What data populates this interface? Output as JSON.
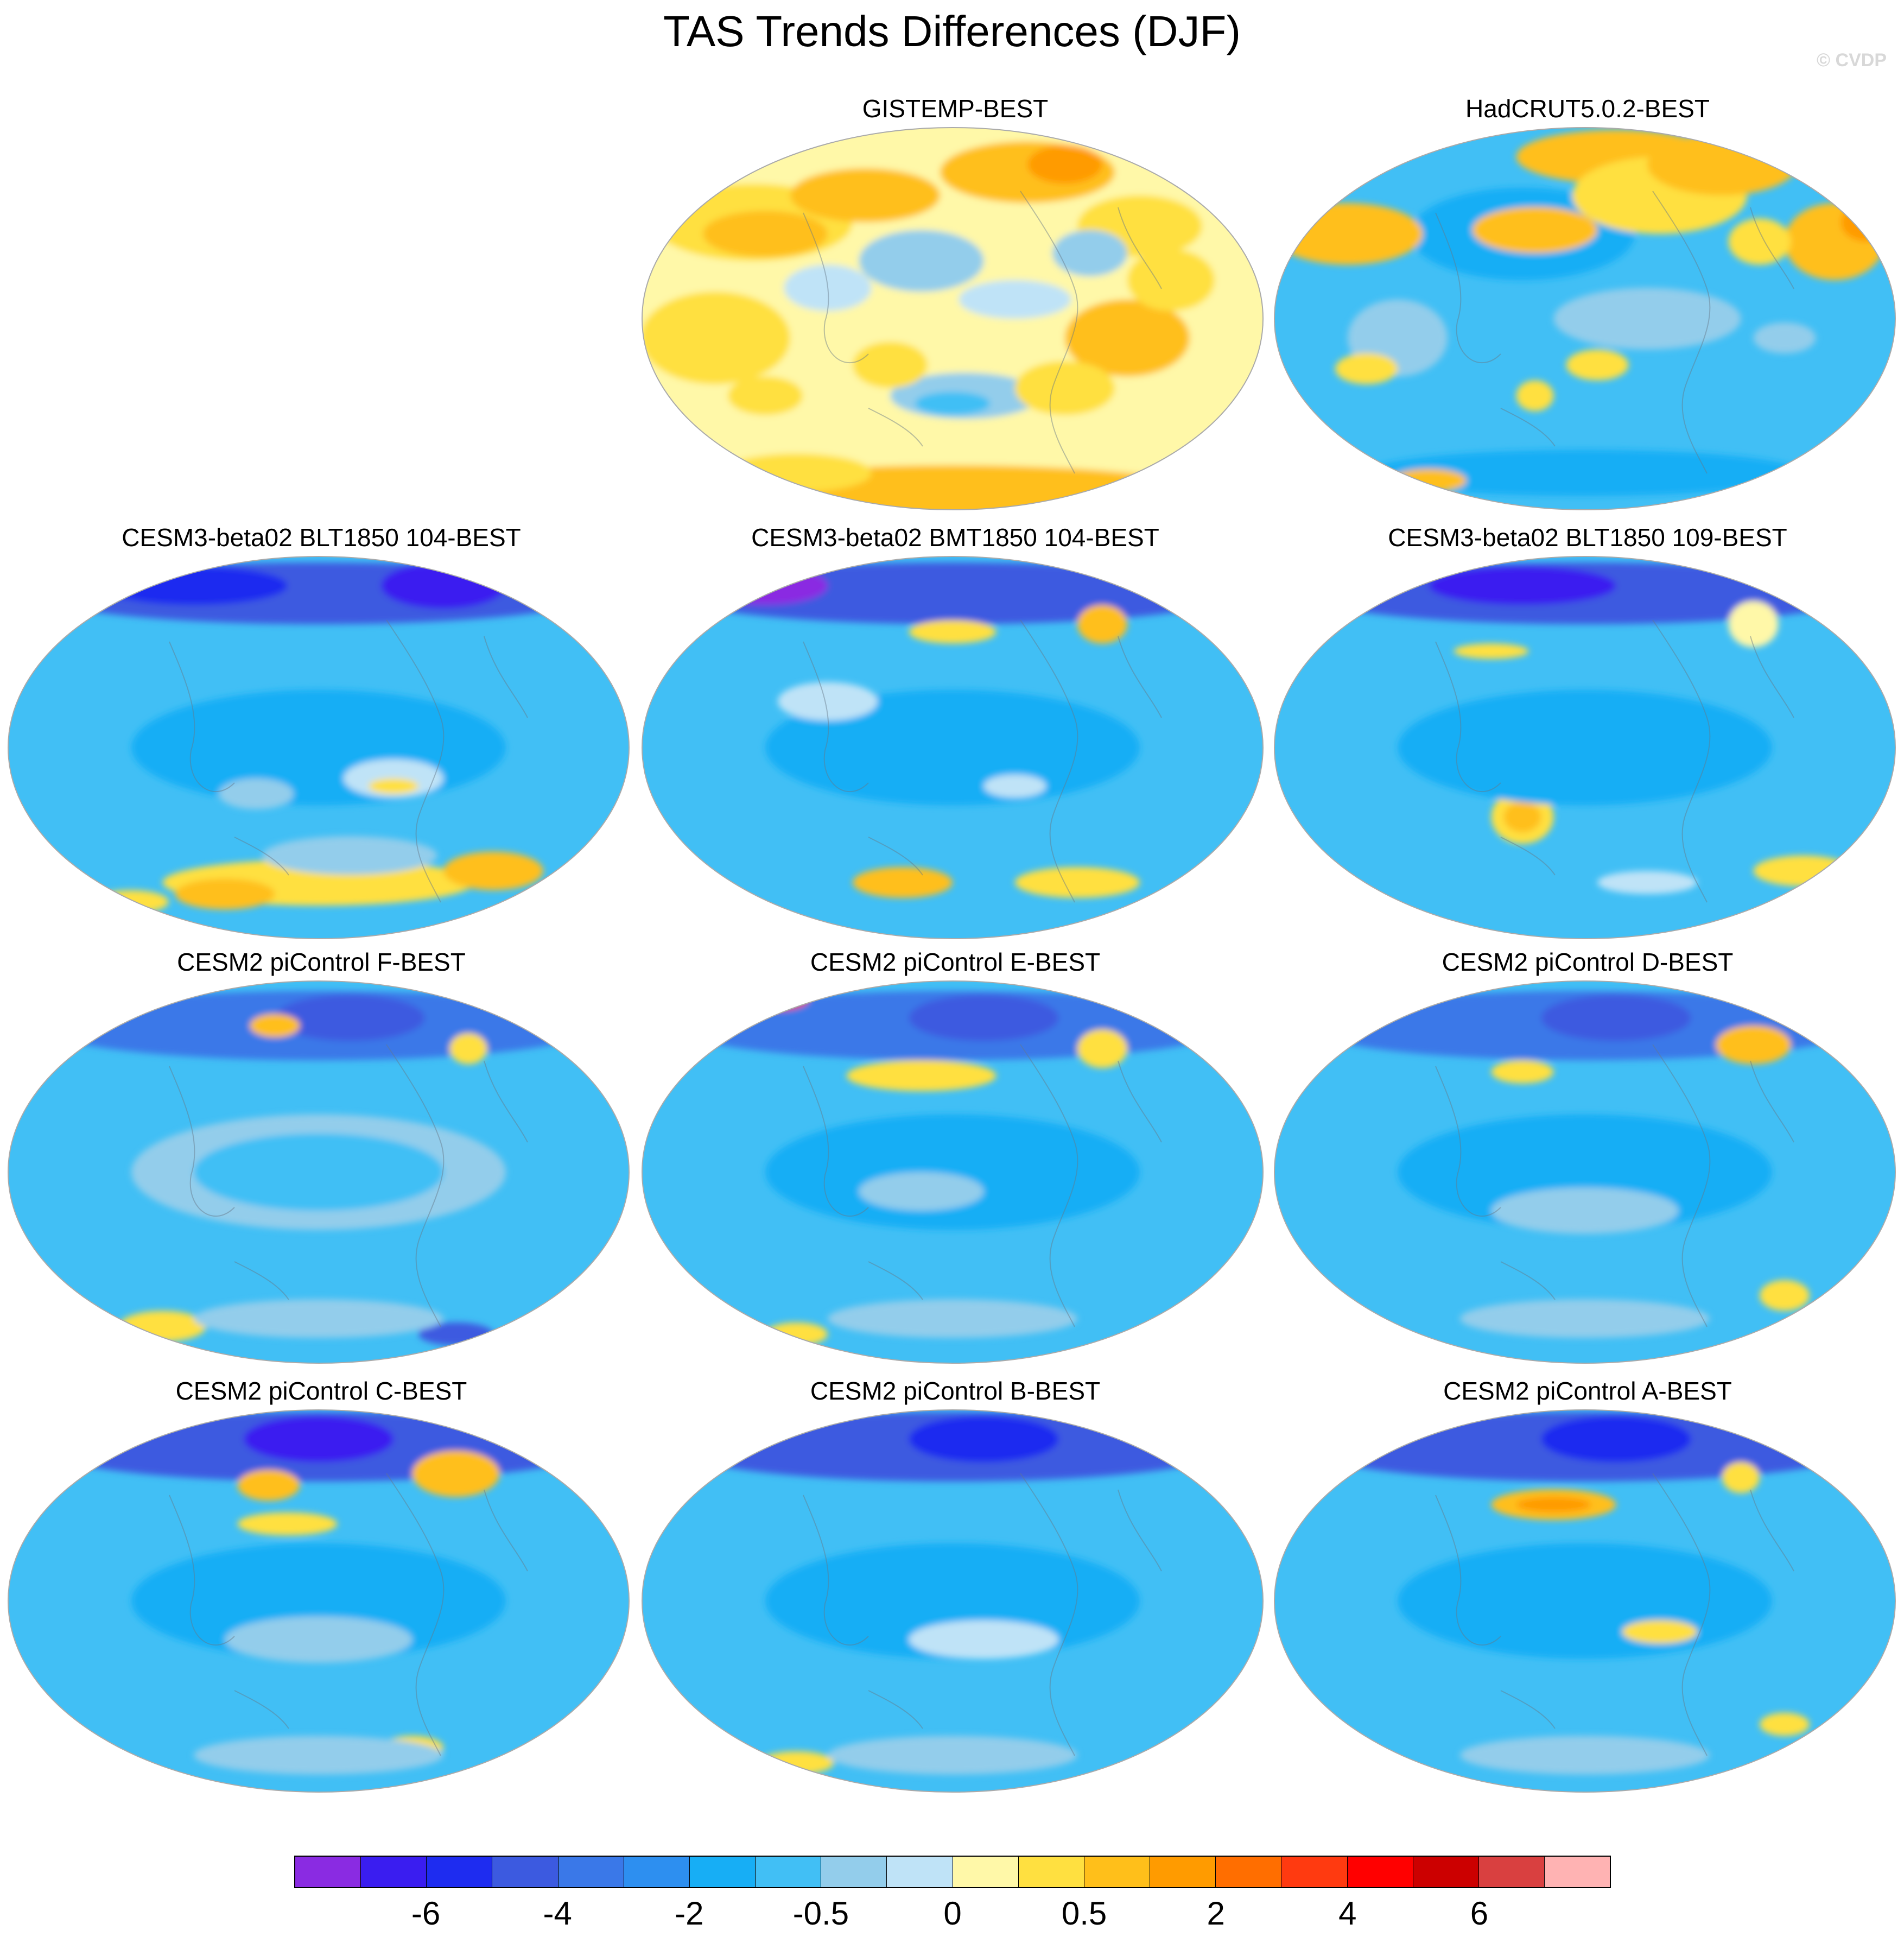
{
  "title": "TAS Trends Differences (DJF)",
  "credit": "© CVDP",
  "panels": [
    {
      "title": "GISTEMP-BEST",
      "pattern": "gistemp"
    },
    {
      "title": "HadCRUT5.0.2-BEST",
      "pattern": "hadcrut"
    },
    {
      "title": "CESM3-beta02 BLT1850 104-BEST",
      "pattern": "model-a"
    },
    {
      "title": "CESM3-beta02 BMT1850 104-BEST",
      "pattern": "model-b"
    },
    {
      "title": "CESM3-beta02 BLT1850 109-BEST",
      "pattern": "model-c"
    },
    {
      "title": "CESM2 piControl F-BEST",
      "pattern": "model-d"
    },
    {
      "title": "CESM2 piControl E-BEST",
      "pattern": "model-e"
    },
    {
      "title": "CESM2 piControl D-BEST",
      "pattern": "model-f"
    },
    {
      "title": "CESM2 piControl C-BEST",
      "pattern": "model-g"
    },
    {
      "title": "CESM2 piControl B-BEST",
      "pattern": "model-h"
    },
    {
      "title": "CESM2 piControl A-BEST",
      "pattern": "model-i"
    }
  ],
  "colorbar": {
    "colors": [
      "#8a2be2",
      "#3a1df0",
      "#1e2cf0",
      "#3c5ae0",
      "#3a78e8",
      "#2d8ff0",
      "#17aef5",
      "#41bff5",
      "#93cdeb",
      "#bfe3f7",
      "#fff8a8",
      "#ffe040",
      "#ffbf1a",
      "#ff9b00",
      "#ff6e00",
      "#ff3a10",
      "#ff0000",
      "#cc0000",
      "#d94040",
      "#ffb3b3"
    ],
    "tick_labels": [
      "-6",
      "-4",
      "-2",
      "-0.5",
      "0",
      "0.5",
      "2",
      "4",
      "6"
    ]
  }
}
